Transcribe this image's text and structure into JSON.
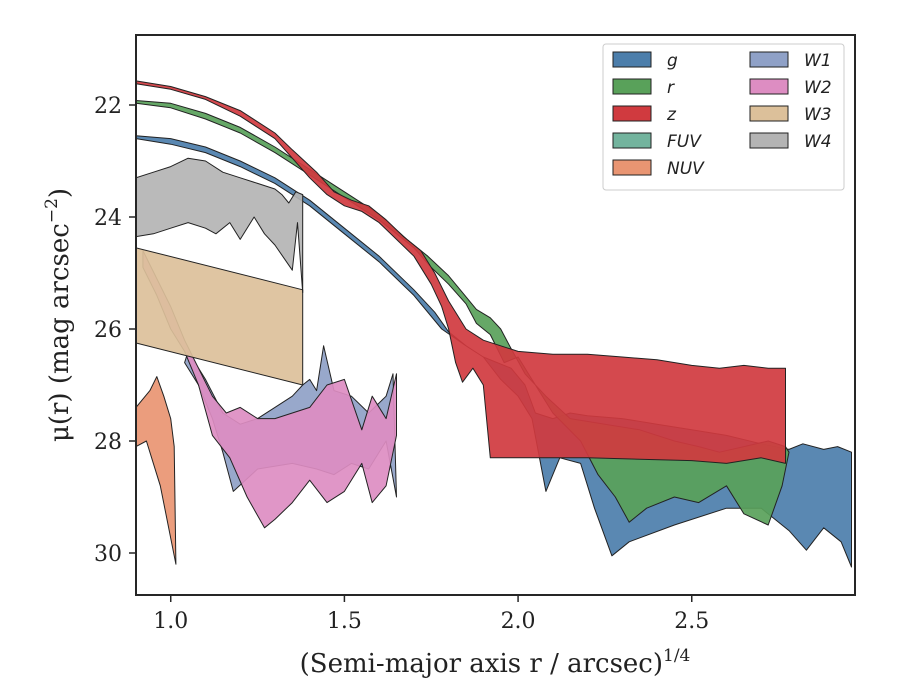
{
  "chart_data": {
    "type": "area",
    "title": "",
    "xlabel": "(Semi-major axis r / arcsec)",
    "xlabel_exponent": "1/4",
    "ylabel": "μ(r) (mag arcsec",
    "ylabel_exponent": "−2",
    "ylabel_close": ")",
    "xlim": [
      0.9,
      2.97
    ],
    "ylim": [
      30.75,
      20.75
    ],
    "y_inverted": true,
    "xticks": [
      1.0,
      1.5,
      2.0,
      2.5
    ],
    "xtick_labels": [
      "1.0",
      "1.5",
      "2.0",
      "2.5"
    ],
    "yticks": [
      22,
      24,
      26,
      28,
      30
    ],
    "ytick_labels": [
      "22",
      "24",
      "26",
      "28",
      "30"
    ],
    "grid": false,
    "legend_placement": "top-right",
    "legend_columns": 2,
    "series": [
      {
        "name": "g",
        "color": "#4C7EAB",
        "polygon": [
          [
            0.9,
            22.6
          ],
          [
            1.0,
            22.7
          ],
          [
            1.1,
            22.85
          ],
          [
            1.2,
            23.1
          ],
          [
            1.3,
            23.4
          ],
          [
            1.4,
            23.8
          ],
          [
            1.5,
            24.3
          ],
          [
            1.6,
            24.8
          ],
          [
            1.7,
            25.4
          ],
          [
            1.78,
            26.0
          ],
          [
            1.85,
            26.3
          ],
          [
            1.9,
            26.5
          ],
          [
            1.95,
            26.9
          ],
          [
            2.0,
            27.2
          ],
          [
            2.04,
            27.6
          ],
          [
            2.08,
            28.9
          ],
          [
            2.12,
            28.3
          ],
          [
            2.18,
            28.4
          ],
          [
            2.22,
            29.2
          ],
          [
            2.27,
            30.05
          ],
          [
            2.32,
            29.8
          ],
          [
            2.45,
            29.5
          ],
          [
            2.6,
            29.2
          ],
          [
            2.7,
            29.2
          ],
          [
            2.78,
            29.6
          ],
          [
            2.83,
            29.95
          ],
          [
            2.88,
            29.55
          ],
          [
            2.93,
            29.8
          ],
          [
            2.96,
            30.25
          ],
          [
            2.96,
            28.2
          ],
          [
            2.92,
            28.1
          ],
          [
            2.88,
            28.15
          ],
          [
            2.82,
            28.05
          ],
          [
            2.78,
            28.15
          ],
          [
            2.7,
            28.05
          ],
          [
            2.6,
            27.9
          ],
          [
            2.5,
            27.8
          ],
          [
            2.4,
            27.7
          ],
          [
            2.3,
            27.6
          ],
          [
            2.2,
            27.55
          ],
          [
            2.15,
            27.5
          ],
          [
            2.1,
            27.6
          ],
          [
            2.05,
            27.5
          ],
          [
            2.02,
            27.0
          ],
          [
            1.98,
            26.7
          ],
          [
            1.94,
            26.6
          ],
          [
            1.9,
            26.5
          ],
          [
            1.85,
            26.3
          ],
          [
            1.8,
            26.05
          ],
          [
            1.76,
            25.7
          ],
          [
            1.7,
            25.3
          ],
          [
            1.6,
            24.7
          ],
          [
            1.5,
            24.2
          ],
          [
            1.4,
            23.7
          ],
          [
            1.3,
            23.3
          ],
          [
            1.2,
            23.0
          ],
          [
            1.1,
            22.75
          ],
          [
            1.0,
            22.6
          ],
          [
            0.9,
            22.55
          ]
        ]
      },
      {
        "name": "r",
        "color": "#59A15A",
        "polygon": [
          [
            0.9,
            21.97
          ],
          [
            1.0,
            22.05
          ],
          [
            1.1,
            22.25
          ],
          [
            1.2,
            22.5
          ],
          [
            1.3,
            22.85
          ],
          [
            1.4,
            23.25
          ],
          [
            1.5,
            23.65
          ],
          [
            1.6,
            24.05
          ],
          [
            1.7,
            24.55
          ],
          [
            1.75,
            24.9
          ],
          [
            1.8,
            25.2
          ],
          [
            1.85,
            25.55
          ],
          [
            1.88,
            25.9
          ],
          [
            1.92,
            26.1
          ],
          [
            1.96,
            26.6
          ],
          [
            2.0,
            26.5
          ],
          [
            2.05,
            27.0
          ],
          [
            2.1,
            27.5
          ],
          [
            2.18,
            28.0
          ],
          [
            2.23,
            28.6
          ],
          [
            2.28,
            29.0
          ],
          [
            2.32,
            29.45
          ],
          [
            2.37,
            29.2
          ],
          [
            2.45,
            29.0
          ],
          [
            2.52,
            29.1
          ],
          [
            2.6,
            28.8
          ],
          [
            2.65,
            29.3
          ],
          [
            2.72,
            29.5
          ],
          [
            2.76,
            28.8
          ],
          [
            2.78,
            28.2
          ],
          [
            2.77,
            28.1
          ],
          [
            2.72,
            28.0
          ],
          [
            2.65,
            28.1
          ],
          [
            2.58,
            28.2
          ],
          [
            2.52,
            28.1
          ],
          [
            2.45,
            28.0
          ],
          [
            2.35,
            27.8
          ],
          [
            2.25,
            27.7
          ],
          [
            2.15,
            27.6
          ],
          [
            2.08,
            27.2
          ],
          [
            2.02,
            26.8
          ],
          [
            1.98,
            26.35
          ],
          [
            1.95,
            26.0
          ],
          [
            1.92,
            25.8
          ],
          [
            1.88,
            25.65
          ],
          [
            1.84,
            25.35
          ],
          [
            1.8,
            25.05
          ],
          [
            1.74,
            24.7
          ],
          [
            1.68,
            24.4
          ],
          [
            1.6,
            23.95
          ],
          [
            1.5,
            23.55
          ],
          [
            1.4,
            23.15
          ],
          [
            1.3,
            22.75
          ],
          [
            1.2,
            22.4
          ],
          [
            1.1,
            22.15
          ],
          [
            1.0,
            21.97
          ],
          [
            0.9,
            21.92
          ]
        ]
      },
      {
        "name": "z",
        "color": "#D03A3F",
        "polygon": [
          [
            0.9,
            21.62
          ],
          [
            1.0,
            21.72
          ],
          [
            1.1,
            21.9
          ],
          [
            1.2,
            22.2
          ],
          [
            1.3,
            22.6
          ],
          [
            1.35,
            22.95
          ],
          [
            1.4,
            23.3
          ],
          [
            1.45,
            23.6
          ],
          [
            1.5,
            23.8
          ],
          [
            1.55,
            23.9
          ],
          [
            1.6,
            24.1
          ],
          [
            1.65,
            24.4
          ],
          [
            1.7,
            24.7
          ],
          [
            1.75,
            25.2
          ],
          [
            1.78,
            25.6
          ],
          [
            1.8,
            26.0
          ],
          [
            1.82,
            26.6
          ],
          [
            1.84,
            26.95
          ],
          [
            1.87,
            26.7
          ],
          [
            1.9,
            27.0
          ],
          [
            1.92,
            28.3
          ],
          [
            2.2,
            28.3
          ],
          [
            2.5,
            28.35
          ],
          [
            2.6,
            28.4
          ],
          [
            2.7,
            28.3
          ],
          [
            2.77,
            28.4
          ],
          [
            2.77,
            26.7
          ],
          [
            2.72,
            26.7
          ],
          [
            2.65,
            26.65
          ],
          [
            2.58,
            26.7
          ],
          [
            2.5,
            26.65
          ],
          [
            2.4,
            26.55
          ],
          [
            2.3,
            26.5
          ],
          [
            2.2,
            26.45
          ],
          [
            2.1,
            26.45
          ],
          [
            2.0,
            26.4
          ],
          [
            1.95,
            26.3
          ],
          [
            1.9,
            26.2
          ],
          [
            1.85,
            26.0
          ],
          [
            1.8,
            25.5
          ],
          [
            1.76,
            25.0
          ],
          [
            1.72,
            24.6
          ],
          [
            1.67,
            24.35
          ],
          [
            1.62,
            24.05
          ],
          [
            1.57,
            23.8
          ],
          [
            1.52,
            23.7
          ],
          [
            1.47,
            23.55
          ],
          [
            1.42,
            23.2
          ],
          [
            1.35,
            22.8
          ],
          [
            1.3,
            22.5
          ],
          [
            1.2,
            22.1
          ],
          [
            1.1,
            21.85
          ],
          [
            1.0,
            21.67
          ],
          [
            0.9,
            21.57
          ]
        ]
      },
      {
        "name": "FUV",
        "color": "#73B49E",
        "polygon": []
      },
      {
        "name": "NUV",
        "color": "#E99572",
        "polygon": [
          [
            0.9,
            27.4
          ],
          [
            0.94,
            27.1
          ],
          [
            0.96,
            26.85
          ],
          [
            0.98,
            27.2
          ],
          [
            1.0,
            27.6
          ],
          [
            1.01,
            28.1
          ],
          [
            1.015,
            30.2
          ],
          [
            0.97,
            28.8
          ],
          [
            0.93,
            28.0
          ],
          [
            0.9,
            28.1
          ]
        ]
      },
      {
        "name": "W1",
        "color": "#8FA1C7",
        "polygon": [
          [
            1.05,
            26.4
          ],
          [
            1.1,
            26.9
          ],
          [
            1.15,
            27.5
          ],
          [
            1.2,
            27.7
          ],
          [
            1.25,
            27.6
          ],
          [
            1.3,
            27.4
          ],
          [
            1.35,
            27.2
          ],
          [
            1.38,
            27.0
          ],
          [
            1.4,
            26.9
          ],
          [
            1.42,
            27.1
          ],
          [
            1.44,
            26.3
          ],
          [
            1.47,
            27.1
          ],
          [
            1.52,
            27.2
          ],
          [
            1.57,
            27.5
          ],
          [
            1.62,
            27.2
          ],
          [
            1.64,
            26.8
          ],
          [
            1.65,
            29.0
          ],
          [
            1.62,
            28.0
          ],
          [
            1.57,
            28.5
          ],
          [
            1.52,
            28.4
          ],
          [
            1.47,
            28.6
          ],
          [
            1.42,
            28.5
          ],
          [
            1.35,
            28.4
          ],
          [
            1.25,
            28.5
          ],
          [
            1.18,
            28.9
          ],
          [
            1.15,
            28.2
          ],
          [
            1.12,
            27.6
          ],
          [
            1.08,
            27.0
          ],
          [
            1.04,
            26.6
          ]
        ]
      },
      {
        "name": "W2",
        "color": "#DD8DC2",
        "polygon": [
          [
            0.92,
            24.6
          ],
          [
            0.96,
            25.1
          ],
          [
            1.0,
            25.6
          ],
          [
            1.04,
            26.2
          ],
          [
            1.08,
            26.7
          ],
          [
            1.12,
            27.2
          ],
          [
            1.16,
            27.5
          ],
          [
            1.2,
            27.4
          ],
          [
            1.25,
            27.6
          ],
          [
            1.3,
            27.6
          ],
          [
            1.35,
            27.5
          ],
          [
            1.4,
            27.4
          ],
          [
            1.45,
            27.0
          ],
          [
            1.5,
            26.9
          ],
          [
            1.55,
            27.8
          ],
          [
            1.58,
            27.2
          ],
          [
            1.62,
            27.6
          ],
          [
            1.65,
            26.8
          ],
          [
            1.65,
            27.9
          ],
          [
            1.62,
            28.8
          ],
          [
            1.58,
            29.1
          ],
          [
            1.55,
            28.4
          ],
          [
            1.5,
            28.9
          ],
          [
            1.45,
            29.1
          ],
          [
            1.4,
            28.7
          ],
          [
            1.35,
            29.1
          ],
          [
            1.3,
            29.4
          ],
          [
            1.27,
            29.55
          ],
          [
            1.22,
            29.0
          ],
          [
            1.17,
            28.3
          ],
          [
            1.12,
            27.9
          ],
          [
            1.08,
            27.0
          ],
          [
            1.04,
            26.4
          ],
          [
            1.0,
            26.0
          ],
          [
            0.96,
            25.4
          ],
          [
            0.92,
            24.9
          ]
        ]
      },
      {
        "name": "W3",
        "color": "#DCC09A",
        "polygon": [
          [
            0.9,
            24.55
          ],
          [
            1.38,
            25.3
          ],
          [
            1.38,
            27.0
          ],
          [
            0.9,
            26.25
          ]
        ]
      },
      {
        "name": "W4",
        "color": "#B4B4B4",
        "polygon": [
          [
            0.9,
            23.3
          ],
          [
            0.95,
            23.2
          ],
          [
            1.0,
            23.1
          ],
          [
            1.05,
            22.95
          ],
          [
            1.1,
            23.0
          ],
          [
            1.15,
            23.2
          ],
          [
            1.2,
            23.3
          ],
          [
            1.25,
            23.4
          ],
          [
            1.3,
            23.5
          ],
          [
            1.32,
            23.6
          ],
          [
            1.34,
            23.75
          ],
          [
            1.36,
            23.55
          ],
          [
            1.38,
            23.6
          ],
          [
            1.38,
            25.35
          ],
          [
            1.365,
            24.1
          ],
          [
            1.35,
            24.95
          ],
          [
            1.3,
            24.5
          ],
          [
            1.27,
            24.3
          ],
          [
            1.24,
            24.0
          ],
          [
            1.2,
            24.4
          ],
          [
            1.17,
            24.1
          ],
          [
            1.13,
            24.3
          ],
          [
            1.1,
            24.2
          ],
          [
            1.05,
            24.1
          ],
          [
            1.0,
            24.2
          ],
          [
            0.95,
            24.3
          ],
          [
            0.9,
            24.35
          ]
        ]
      }
    ]
  }
}
